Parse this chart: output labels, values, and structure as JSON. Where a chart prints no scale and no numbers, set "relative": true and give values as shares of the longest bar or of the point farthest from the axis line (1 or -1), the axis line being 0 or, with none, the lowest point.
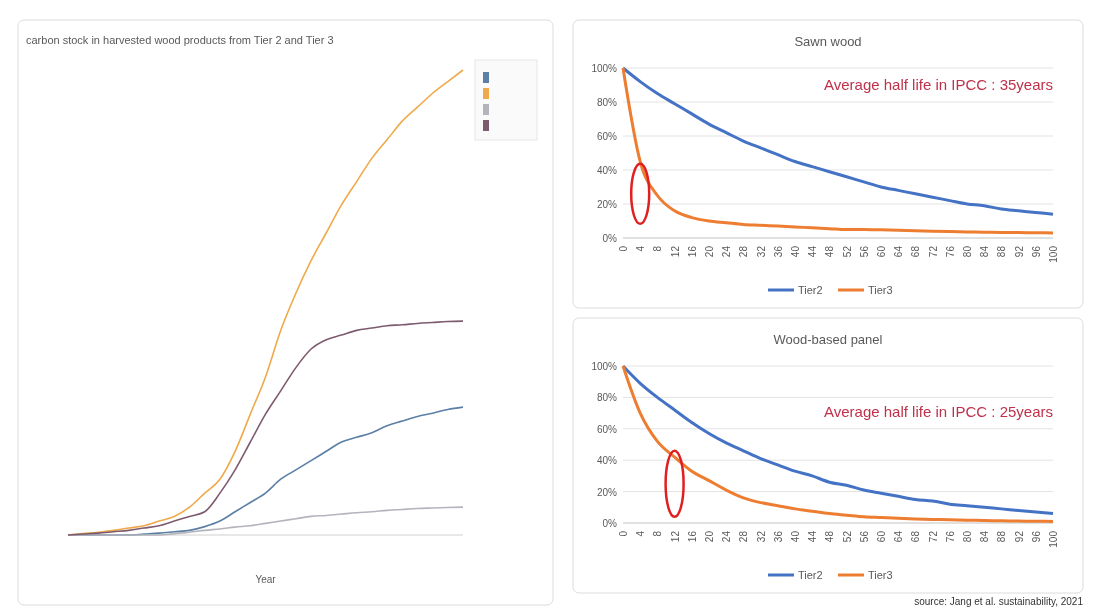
{
  "chart_data": [
    {
      "type": "line",
      "title": "carbon stock in harvested wood products from Tier 2 and Tier 3",
      "xlabel": "Year",
      "relative": true,
      "grid": "y",
      "categories": [
        null,
        null,
        null,
        null,
        null,
        null,
        null,
        null,
        null,
        null,
        null,
        null,
        null,
        null,
        null,
        null,
        null,
        null,
        null,
        null,
        null,
        null,
        null,
        null,
        null,
        null,
        null
      ],
      "series": [
        {
          "color": "#5b7fa6",
          "values": [
            0,
            0,
            0,
            0,
            0,
            0.002,
            0.004,
            0.007,
            0.01,
            0.018,
            0.03,
            0.05,
            0.07,
            0.09,
            0.12,
            0.14,
            0.16,
            0.18,
            0.2,
            0.21,
            0.22,
            0.235,
            0.245,
            0.255,
            0.262,
            0.27,
            0.275
          ]
        },
        {
          "color": "#f0a94a",
          "values": [
            0,
            0.003,
            0.006,
            0.01,
            0.015,
            0.02,
            0.03,
            0.04,
            0.06,
            0.09,
            0.12,
            0.18,
            0.26,
            0.34,
            0.44,
            0.52,
            0.59,
            0.65,
            0.71,
            0.76,
            0.81,
            0.85,
            0.89,
            0.92,
            0.95,
            0.975,
            1
          ]
        },
        {
          "color": "#b4b4bc",
          "values": [
            0,
            0,
            0,
            0,
            0,
            0,
            0,
            0.003,
            0.006,
            0.01,
            0.013,
            0.017,
            0.02,
            0.025,
            0.03,
            0.035,
            0.04,
            0.042,
            0.045,
            0.048,
            0.05,
            0.053,
            0.055,
            0.057,
            0.058,
            0.059,
            0.06
          ]
        },
        {
          "color": "#7d5b6f",
          "values": [
            0,
            0.002,
            0.004,
            0.007,
            0.01,
            0.015,
            0.02,
            0.03,
            0.04,
            0.05,
            0.09,
            0.14,
            0.2,
            0.26,
            0.31,
            0.36,
            0.4,
            0.42,
            0.43,
            0.44,
            0.445,
            0.45,
            0.452,
            0.455,
            0.457,
            0.459,
            0.46
          ]
        }
      ]
    },
    {
      "type": "line",
      "title": "Sawn wood",
      "annotations": [
        "Average half life in IPCC : 35years"
      ],
      "legend": "bottom",
      "grid": "y",
      "categories": [
        "0",
        "4",
        "8",
        "12",
        "16",
        "20",
        "24",
        "28",
        "32",
        "36",
        "40",
        "44",
        "48",
        "52",
        "56",
        "60",
        "64",
        "68",
        "72",
        "76",
        "80",
        "84",
        "88",
        "92",
        "96",
        "100"
      ],
      "ylim": [
        0,
        100
      ],
      "yticks": [
        {
          "value": 0,
          "label": "0%"
        },
        {
          "value": 20,
          "label": "20%"
        },
        {
          "value": 40,
          "label": "40%"
        },
        {
          "value": 60,
          "label": "60%"
        },
        {
          "value": 80,
          "label": "80%"
        },
        {
          "value": 100,
          "label": "100%"
        }
      ],
      "series": [
        {
          "name": "Tier2",
          "color": "#4472c4",
          "values": [
            100,
            92,
            85,
            79,
            73,
            67,
            62,
            57,
            53,
            49,
            45,
            42,
            39,
            36,
            33,
            30,
            28,
            26,
            24,
            22,
            20,
            19,
            17,
            16,
            15,
            14
          ]
        },
        {
          "name": "Tier3",
          "color": "#ed7d31",
          "values": [
            100,
            45,
            25,
            16,
            12,
            10,
            9,
            8,
            7.5,
            7,
            6.5,
            6,
            5.5,
            5,
            5,
            4.8,
            4.5,
            4.3,
            4,
            3.8,
            3.6,
            3.4,
            3.3,
            3.2,
            3.1,
            3
          ]
        }
      ]
    },
    {
      "type": "line",
      "title": "Wood-based panel",
      "annotations": [
        "Average half life in IPCC : 25years",
        "source: Jang et al. sustainability, 2021"
      ],
      "legend": "bottom",
      "grid": "y",
      "categories": [
        "0",
        "4",
        "8",
        "12",
        "16",
        "20",
        "24",
        "28",
        "32",
        "36",
        "40",
        "44",
        "48",
        "52",
        "56",
        "60",
        "64",
        "68",
        "72",
        "76",
        "80",
        "84",
        "88",
        "92",
        "96",
        "100"
      ],
      "ylim": [
        0,
        100
      ],
      "yticks": [
        {
          "value": 0,
          "label": "0%"
        },
        {
          "value": 20,
          "label": "20%"
        },
        {
          "value": 40,
          "label": "40%"
        },
        {
          "value": 60,
          "label": "60%"
        },
        {
          "value": 80,
          "label": "80%"
        },
        {
          "value": 100,
          "label": "100%"
        }
      ],
      "series": [
        {
          "name": "Tier2",
          "color": "#4472c4",
          "values": [
            100,
            89,
            80,
            72,
            64,
            57,
            51,
            46,
            41,
            37,
            33,
            30,
            26,
            24,
            21,
            19,
            17,
            15,
            14,
            12,
            11,
            10,
            9,
            8,
            7,
            6
          ]
        },
        {
          "name": "Tier3",
          "color": "#ed7d31",
          "values": [
            100,
            70,
            52,
            42,
            33,
            27,
            21,
            16,
            13,
            11,
            9,
            7.5,
            6,
            5,
            4,
            3.5,
            3,
            2.6,
            2.3,
            2,
            1.8,
            1.6,
            1.4,
            1.2,
            1.1,
            1
          ]
        }
      ]
    }
  ]
}
